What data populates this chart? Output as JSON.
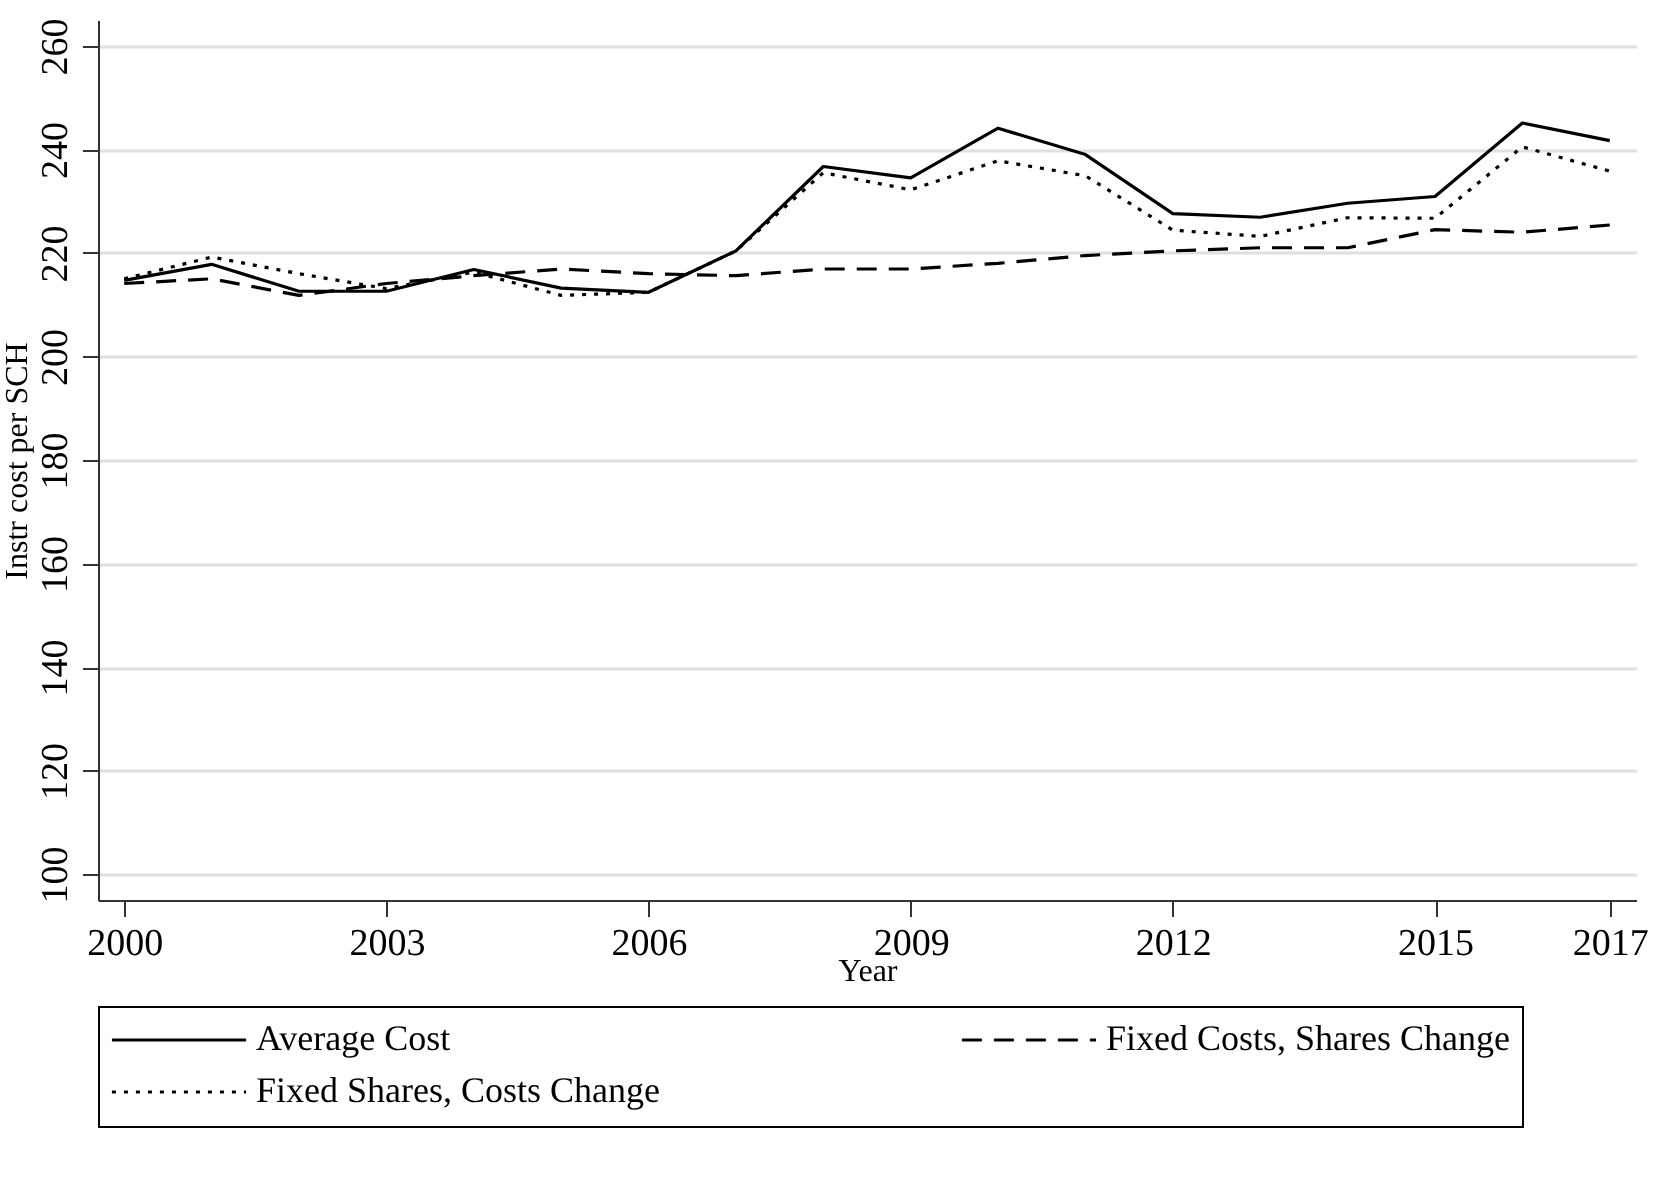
{
  "chart_data": {
    "type": "line",
    "xlabel": "Year",
    "ylabel": "Instr cost per SCH",
    "x": [
      2000,
      2001,
      2002,
      2003,
      2004,
      2005,
      2006,
      2007,
      2008,
      2009,
      2010,
      2011,
      2012,
      2013,
      2014,
      2015,
      2016,
      2017
    ],
    "series": [
      {
        "name": "Average Cost",
        "color": "#000000",
        "line_style": "solid",
        "values": [
          214.7,
          217.8,
          212.6,
          212.6,
          216.8,
          213.2,
          212.4,
          220.4,
          236.7,
          234.5,
          244.1,
          239.0,
          227.6,
          226.9,
          229.6,
          230.9,
          245.1,
          241.7
        ]
      },
      {
        "name": "Fixed Costs, Shares Change",
        "color": "#000000",
        "line_style": "dashed",
        "values": [
          214.1,
          215.0,
          211.8,
          214.1,
          215.6,
          216.9,
          216.0,
          215.6,
          216.9,
          216.9,
          218.0,
          219.5,
          220.4,
          221.0,
          221.0,
          224.5,
          224.0,
          225.4
        ]
      },
      {
        "name": "Fixed Shares, Costs Change",
        "color": "#000000",
        "line_style": "dotted",
        "values": [
          215.0,
          219.2,
          216.0,
          213.1,
          216.3,
          211.8,
          212.4,
          220.4,
          235.5,
          232.2,
          237.8,
          234.9,
          224.4,
          223.2,
          226.8,
          226.7,
          240.5,
          235.8
        ]
      }
    ],
    "xlim": [
      1999.7,
      2017.3
    ],
    "xticks": [
      2000,
      2003,
      2006,
      2009,
      2012,
      2015,
      2017
    ],
    "ylim": [
      95,
      265
    ],
    "yticks": [
      100,
      120,
      140,
      160,
      180,
      200,
      220,
      240,
      260
    ],
    "grid": "y",
    "legend": "bottom"
  }
}
